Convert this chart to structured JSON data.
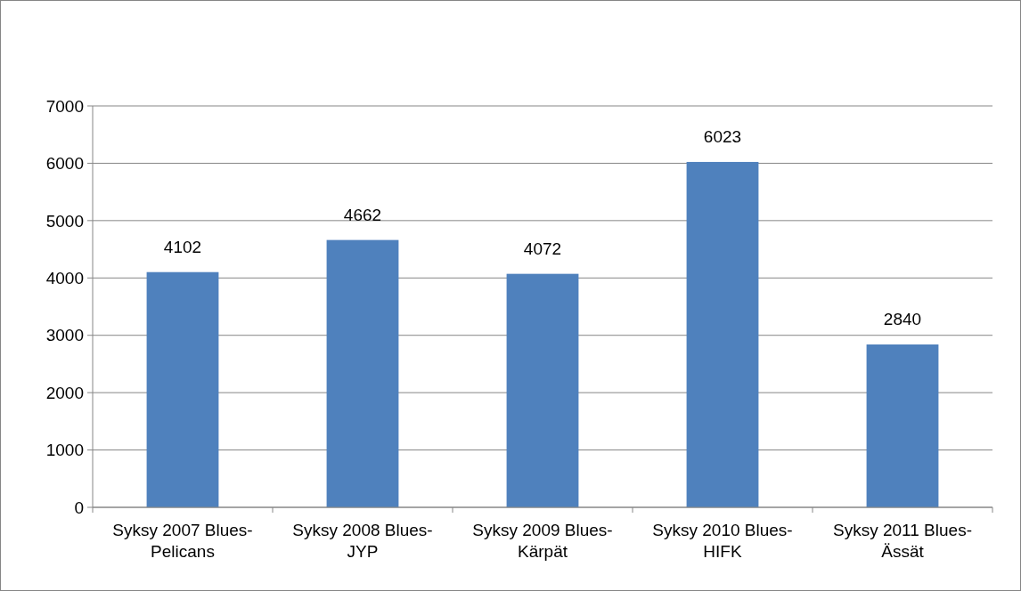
{
  "chart_data": {
    "type": "bar",
    "categories": [
      "Syksy 2007 Blues-Pelicans",
      "Syksy 2008 Blues-JYP",
      "Syksy 2009 Blues-Kärpät",
      "Syksy 2010 Blues-HIFK",
      "Syksy 2011 Blues-Ässät"
    ],
    "values": [
      4102,
      4662,
      4072,
      6023,
      2840
    ],
    "color": "#4f81bd",
    "ylim": [
      0,
      7000
    ],
    "yticks": [
      0,
      1000,
      2000,
      3000,
      4000,
      5000,
      6000,
      7000
    ],
    "grid": "y",
    "data_labels": true
  }
}
